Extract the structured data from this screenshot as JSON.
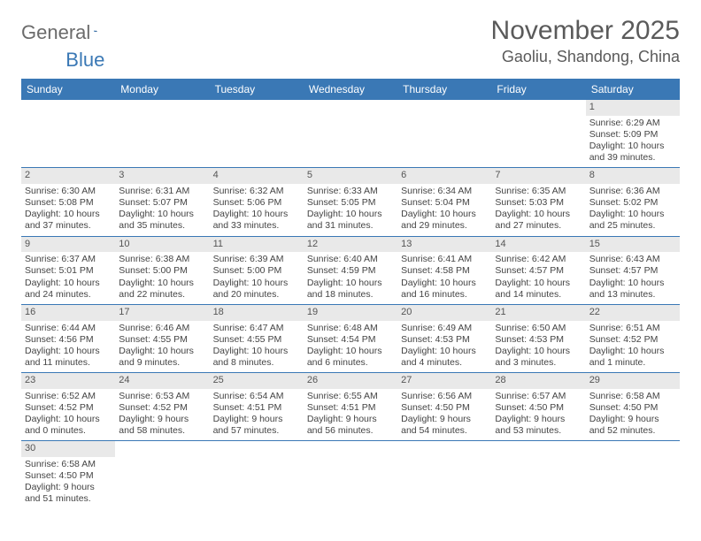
{
  "logo": {
    "text1": "General",
    "text2": "Blue"
  },
  "title": "November 2025",
  "location": "Gaoliu, Shandong, China",
  "colors": {
    "header_bg": "#3a78b5",
    "header_text": "#ffffff",
    "band_bg": "#e9e9e9",
    "border": "#3a78b5",
    "text": "#444444",
    "title_text": "#5a5a5a"
  },
  "weekdays": [
    "Sunday",
    "Monday",
    "Tuesday",
    "Wednesday",
    "Thursday",
    "Friday",
    "Saturday"
  ],
  "weeks": [
    [
      null,
      null,
      null,
      null,
      null,
      null,
      {
        "n": "1",
        "sr": "Sunrise: 6:29 AM",
        "ss": "Sunset: 5:09 PM",
        "dl": "Daylight: 10 hours and 39 minutes."
      }
    ],
    [
      {
        "n": "2",
        "sr": "Sunrise: 6:30 AM",
        "ss": "Sunset: 5:08 PM",
        "dl": "Daylight: 10 hours and 37 minutes."
      },
      {
        "n": "3",
        "sr": "Sunrise: 6:31 AM",
        "ss": "Sunset: 5:07 PM",
        "dl": "Daylight: 10 hours and 35 minutes."
      },
      {
        "n": "4",
        "sr": "Sunrise: 6:32 AM",
        "ss": "Sunset: 5:06 PM",
        "dl": "Daylight: 10 hours and 33 minutes."
      },
      {
        "n": "5",
        "sr": "Sunrise: 6:33 AM",
        "ss": "Sunset: 5:05 PM",
        "dl": "Daylight: 10 hours and 31 minutes."
      },
      {
        "n": "6",
        "sr": "Sunrise: 6:34 AM",
        "ss": "Sunset: 5:04 PM",
        "dl": "Daylight: 10 hours and 29 minutes."
      },
      {
        "n": "7",
        "sr": "Sunrise: 6:35 AM",
        "ss": "Sunset: 5:03 PM",
        "dl": "Daylight: 10 hours and 27 minutes."
      },
      {
        "n": "8",
        "sr": "Sunrise: 6:36 AM",
        "ss": "Sunset: 5:02 PM",
        "dl": "Daylight: 10 hours and 25 minutes."
      }
    ],
    [
      {
        "n": "9",
        "sr": "Sunrise: 6:37 AM",
        "ss": "Sunset: 5:01 PM",
        "dl": "Daylight: 10 hours and 24 minutes."
      },
      {
        "n": "10",
        "sr": "Sunrise: 6:38 AM",
        "ss": "Sunset: 5:00 PM",
        "dl": "Daylight: 10 hours and 22 minutes."
      },
      {
        "n": "11",
        "sr": "Sunrise: 6:39 AM",
        "ss": "Sunset: 5:00 PM",
        "dl": "Daylight: 10 hours and 20 minutes."
      },
      {
        "n": "12",
        "sr": "Sunrise: 6:40 AM",
        "ss": "Sunset: 4:59 PM",
        "dl": "Daylight: 10 hours and 18 minutes."
      },
      {
        "n": "13",
        "sr": "Sunrise: 6:41 AM",
        "ss": "Sunset: 4:58 PM",
        "dl": "Daylight: 10 hours and 16 minutes."
      },
      {
        "n": "14",
        "sr": "Sunrise: 6:42 AM",
        "ss": "Sunset: 4:57 PM",
        "dl": "Daylight: 10 hours and 14 minutes."
      },
      {
        "n": "15",
        "sr": "Sunrise: 6:43 AM",
        "ss": "Sunset: 4:57 PM",
        "dl": "Daylight: 10 hours and 13 minutes."
      }
    ],
    [
      {
        "n": "16",
        "sr": "Sunrise: 6:44 AM",
        "ss": "Sunset: 4:56 PM",
        "dl": "Daylight: 10 hours and 11 minutes."
      },
      {
        "n": "17",
        "sr": "Sunrise: 6:46 AM",
        "ss": "Sunset: 4:55 PM",
        "dl": "Daylight: 10 hours and 9 minutes."
      },
      {
        "n": "18",
        "sr": "Sunrise: 6:47 AM",
        "ss": "Sunset: 4:55 PM",
        "dl": "Daylight: 10 hours and 8 minutes."
      },
      {
        "n": "19",
        "sr": "Sunrise: 6:48 AM",
        "ss": "Sunset: 4:54 PM",
        "dl": "Daylight: 10 hours and 6 minutes."
      },
      {
        "n": "20",
        "sr": "Sunrise: 6:49 AM",
        "ss": "Sunset: 4:53 PM",
        "dl": "Daylight: 10 hours and 4 minutes."
      },
      {
        "n": "21",
        "sr": "Sunrise: 6:50 AM",
        "ss": "Sunset: 4:53 PM",
        "dl": "Daylight: 10 hours and 3 minutes."
      },
      {
        "n": "22",
        "sr": "Sunrise: 6:51 AM",
        "ss": "Sunset: 4:52 PM",
        "dl": "Daylight: 10 hours and 1 minute."
      }
    ],
    [
      {
        "n": "23",
        "sr": "Sunrise: 6:52 AM",
        "ss": "Sunset: 4:52 PM",
        "dl": "Daylight: 10 hours and 0 minutes."
      },
      {
        "n": "24",
        "sr": "Sunrise: 6:53 AM",
        "ss": "Sunset: 4:52 PM",
        "dl": "Daylight: 9 hours and 58 minutes."
      },
      {
        "n": "25",
        "sr": "Sunrise: 6:54 AM",
        "ss": "Sunset: 4:51 PM",
        "dl": "Daylight: 9 hours and 57 minutes."
      },
      {
        "n": "26",
        "sr": "Sunrise: 6:55 AM",
        "ss": "Sunset: 4:51 PM",
        "dl": "Daylight: 9 hours and 56 minutes."
      },
      {
        "n": "27",
        "sr": "Sunrise: 6:56 AM",
        "ss": "Sunset: 4:50 PM",
        "dl": "Daylight: 9 hours and 54 minutes."
      },
      {
        "n": "28",
        "sr": "Sunrise: 6:57 AM",
        "ss": "Sunset: 4:50 PM",
        "dl": "Daylight: 9 hours and 53 minutes."
      },
      {
        "n": "29",
        "sr": "Sunrise: 6:58 AM",
        "ss": "Sunset: 4:50 PM",
        "dl": "Daylight: 9 hours and 52 minutes."
      }
    ],
    [
      {
        "n": "30",
        "sr": "Sunrise: 6:58 AM",
        "ss": "Sunset: 4:50 PM",
        "dl": "Daylight: 9 hours and 51 minutes."
      },
      null,
      null,
      null,
      null,
      null,
      null
    ]
  ]
}
